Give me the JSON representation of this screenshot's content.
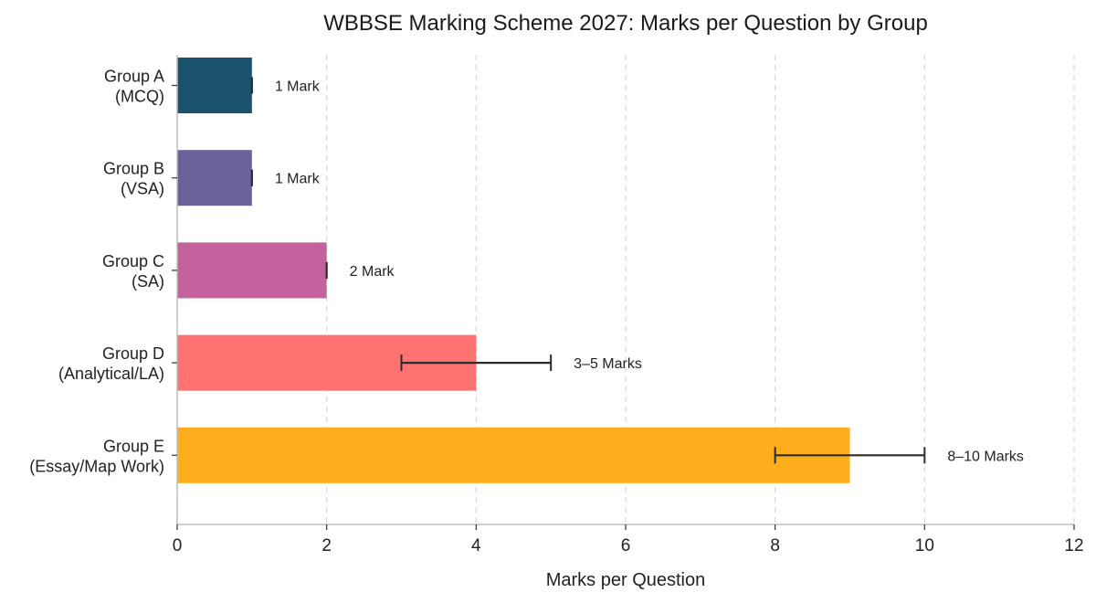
{
  "chart_data": {
    "type": "bar",
    "orientation": "horizontal",
    "title": "WBBSE Marking Scheme 2027: Marks per Question by Group",
    "xlabel": "Marks per Question",
    "ylabel": "",
    "xlim": [
      0,
      12
    ],
    "xticks": [
      0,
      2,
      4,
      6,
      8,
      10,
      12
    ],
    "grid": "vertical-dashed",
    "categories": [
      [
        "Group A",
        "(MCQ)"
      ],
      [
        "Group B",
        "(VSA)"
      ],
      [
        "Group C",
        "(SA)"
      ],
      [
        "Group D",
        "(Analytical/LA)"
      ],
      [
        "Group E",
        "(Essay/Map Work)"
      ]
    ],
    "values": [
      1,
      1,
      2,
      4,
      9
    ],
    "error_ranges": [
      [
        1,
        1
      ],
      [
        1,
        1
      ],
      [
        2,
        2
      ],
      [
        3,
        5
      ],
      [
        8,
        10
      ]
    ],
    "data_labels": [
      "1 Mark",
      "1 Mark",
      "2 Mark",
      "3–5 Marks",
      "8–10 Marks"
    ],
    "colors": [
      "#1b536f",
      "#6a6299",
      "#c3629d",
      "#fe7271",
      "#feae1c"
    ]
  }
}
